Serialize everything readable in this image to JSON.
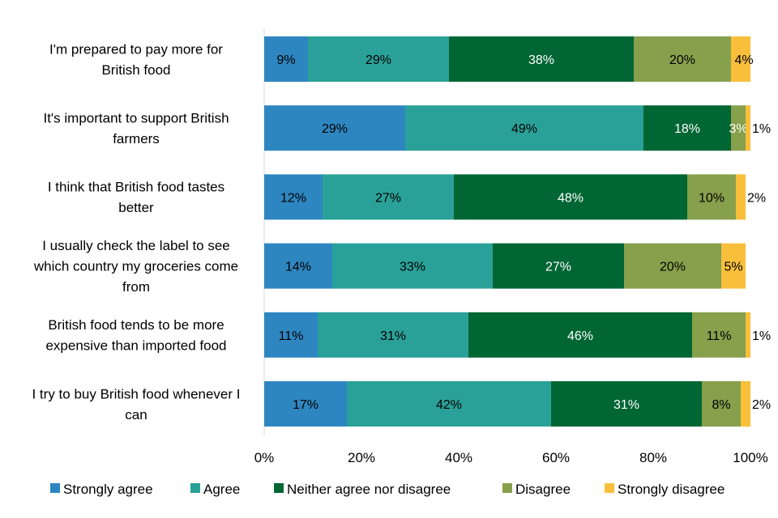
{
  "chart_data": {
    "type": "bar",
    "orientation": "horizontal",
    "stacked": true,
    "categories": [
      "I'm prepared to pay more for British food",
      "It's important to support British farmers",
      "I think that British food tastes better",
      "I usually check the label to see which country my groceries come from",
      "British food tends to be more expensive than imported food",
      "I try to buy British food whenever I can"
    ],
    "category_lines": [
      [
        "I'm prepared to pay more for",
        "British food"
      ],
      [
        "It's important to support British",
        "farmers"
      ],
      [
        "I think that British food tastes",
        "better"
      ],
      [
        "I usually check the label to see",
        "which country my groceries come",
        "from"
      ],
      [
        "British food tends to be more",
        "expensive than imported food"
      ],
      [
        "I try to buy British food whenever I",
        "can"
      ]
    ],
    "series": [
      {
        "name": "Strongly agree",
        "color": "#2e86c1",
        "label_color": "#000000",
        "values": [
          9,
          29,
          12,
          14,
          11,
          17
        ]
      },
      {
        "name": "Agree",
        "color": "#2aa198",
        "label_color": "#000000",
        "values": [
          29,
          49,
          27,
          33,
          31,
          42
        ]
      },
      {
        "name": "Neither agree nor disagree",
        "color": "#006633",
        "label_color": "#ffffff",
        "values": [
          38,
          18,
          48,
          27,
          46,
          31
        ]
      },
      {
        "name": "Disagree",
        "color": "#86a04c",
        "label_color": "#000000",
        "values": [
          20,
          3,
          10,
          20,
          11,
          8
        ]
      },
      {
        "name": "Strongly disagree",
        "color": "#f9bf3b",
        "label_color": "#000000",
        "values": [
          4,
          1,
          2,
          5,
          1,
          2
        ]
      }
    ],
    "data_labels": [
      [
        "9%",
        "29%",
        "38%",
        "20%",
        "4%"
      ],
      [
        "29%",
        "49%",
        "18%",
        "3%",
        "1%"
      ],
      [
        "12%",
        "27%",
        "48%",
        "10%",
        "2%"
      ],
      [
        "14%",
        "33%",
        "27%",
        "20%",
        "5%"
      ],
      [
        "11%",
        "31%",
        "46%",
        "11%",
        "1%"
      ],
      [
        "17%",
        "42%",
        "31%",
        "8%",
        "2%"
      ]
    ],
    "xlim": [
      0,
      100
    ],
    "x_ticks": [
      0,
      20,
      40,
      60,
      80,
      100
    ],
    "x_tick_labels": [
      "0%",
      "20%",
      "40%",
      "60%",
      "80%",
      "100%"
    ],
    "grid": false,
    "legend_position": "bottom"
  }
}
